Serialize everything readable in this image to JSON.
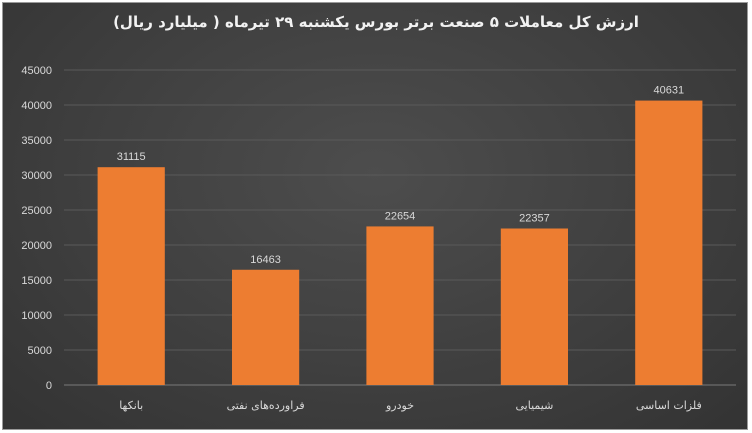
{
  "chart_data": {
    "type": "bar",
    "title": "ارزش کل معاملات ۵ صنعت برتر بورس یکشنبه ۲۹ تیرماه ( میلیارد ریال)",
    "categories": [
      "بانکها",
      "فراوردەهای نفتی",
      "خودرو",
      "شیمیایی",
      "فلزات اساسی"
    ],
    "values": [
      31115,
      16463,
      22654,
      22357,
      40631
    ],
    "data_labels": [
      "31115",
      "16463",
      "22654",
      "22357",
      "40631"
    ],
    "ylim": [
      0,
      45000
    ],
    "yticks": [
      "0",
      "5000",
      "10000",
      "15000",
      "20000",
      "25000",
      "30000",
      "35000",
      "40000",
      "45000"
    ],
    "xlabel": "",
    "ylabel": "",
    "grid": true,
    "legend": "none",
    "colors": {
      "bar": "#ed7d31",
      "background": "#404040",
      "text": "#d9d9d9",
      "grid": "#5a5a5a"
    }
  }
}
